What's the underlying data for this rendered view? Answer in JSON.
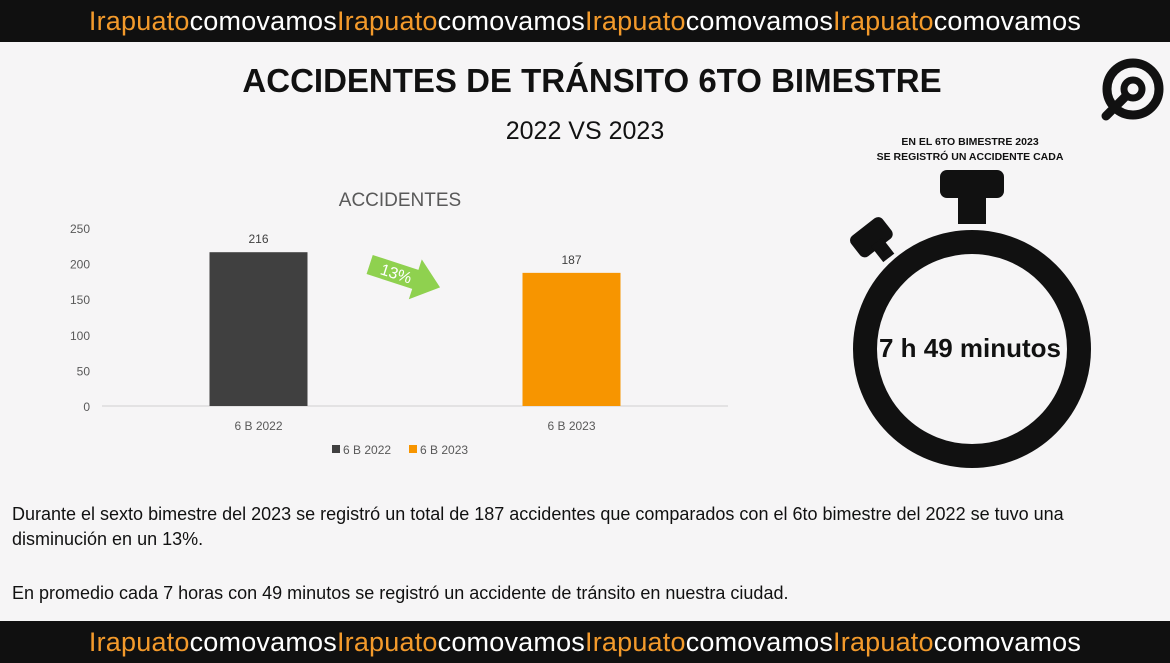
{
  "banner": {
    "segments": [
      {
        "text": "Irapuato",
        "color": "#f39a2b"
      },
      {
        "text": "comovamos",
        "color": "#ffffff"
      },
      {
        "text": "Irapuato",
        "color": "#f39a2b"
      },
      {
        "text": "comovamos",
        "color": "#ffffff"
      },
      {
        "text": "Irapuato",
        "color": "#f39a2b"
      },
      {
        "text": "comovamos",
        "color": "#ffffff"
      },
      {
        "text": "Irapuato",
        "color": "#f39a2b"
      },
      {
        "text": "comovamos",
        "color": "#ffffff"
      }
    ]
  },
  "header": {
    "title": "ACCIDENTES DE TRÁNSITO 6TO BIMESTRE",
    "subtitle": "2022 VS 2023",
    "logo_icon": "cv-logo-icon"
  },
  "chart_data": {
    "type": "bar",
    "title": "ACCIDENTES",
    "categories": [
      "6 B 2022",
      "6 B 2023"
    ],
    "values": [
      216,
      187
    ],
    "data_labels": [
      "216",
      "187"
    ],
    "colors": [
      "#404040",
      "#f79500"
    ],
    "series": [
      {
        "name": "6 B 2022",
        "color": "#404040"
      },
      {
        "name": "6 B 2023",
        "color": "#f79500"
      }
    ],
    "ylim": [
      0,
      250
    ],
    "yticks": [
      0,
      50,
      100,
      150,
      200,
      250
    ],
    "grid": false,
    "legend": "bottom",
    "annotation": {
      "text": "13%",
      "icon": "down-arrow-icon",
      "color": "#8fd14f"
    }
  },
  "timer": {
    "caption_line1": "EN EL 6TO BIMESTRE 2023",
    "caption_line2": "SE REGISTRÓ UN ACCIDENTE CADA",
    "value": "7 h 49 minutos",
    "icon": "stopwatch-icon"
  },
  "body": {
    "paragraph1": "Durante el sexto bimestre del 2023 se registró un total de 187 accidentes que comparados con el 6to bimestre del 2022 se tuvo una disminución en un 13%.",
    "paragraph2": "En promedio cada 7 horas con 49 minutos se registró un accidente de tránsito en nuestra ciudad."
  }
}
